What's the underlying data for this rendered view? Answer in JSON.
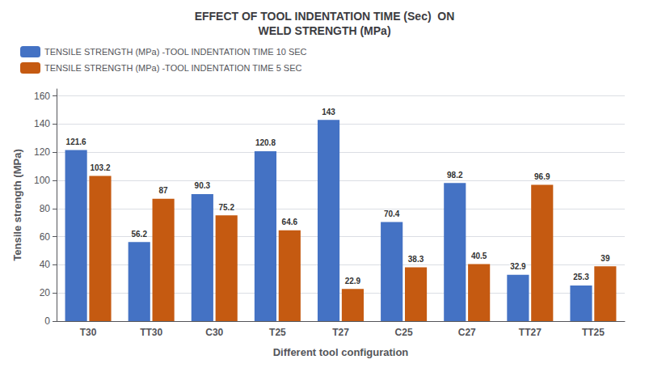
{
  "chart_data": {
    "type": "bar",
    "title": "EFFECT OF TOOL INDENTATION TIME (Sec)  ON\nWELD STRENGTH (MPa)",
    "xlabel": "Different tool configuration",
    "ylabel": "Tensile strength (MPa)",
    "categories": [
      "T30",
      "TT30",
      "C30",
      "T25",
      "T27",
      "C25",
      "C27",
      "TT27",
      "TT25"
    ],
    "series": [
      {
        "name": "TENSILE STRENGTH (MPa) -TOOL INDENTATION TIME 10 SEC",
        "color": "#4472C4",
        "values": [
          121.6,
          56.2,
          90.3,
          120.8,
          143.0,
          70.4,
          98.2,
          32.9,
          25.3
        ]
      },
      {
        "name": "TENSILE STRENGTH (MPa) -TOOL INDENTATION TIME 5 SEC",
        "color": "#C55A11",
        "values": [
          103.2,
          87.0,
          75.2,
          64.6,
          22.9,
          38.3,
          40.5,
          96.9,
          39.0
        ]
      }
    ],
    "ylim": [
      0,
      165
    ],
    "yticks": [
      0,
      20,
      40,
      60,
      80,
      100,
      120,
      140,
      160
    ],
    "grid": true,
    "legend": "upper left",
    "data_labels": true
  }
}
